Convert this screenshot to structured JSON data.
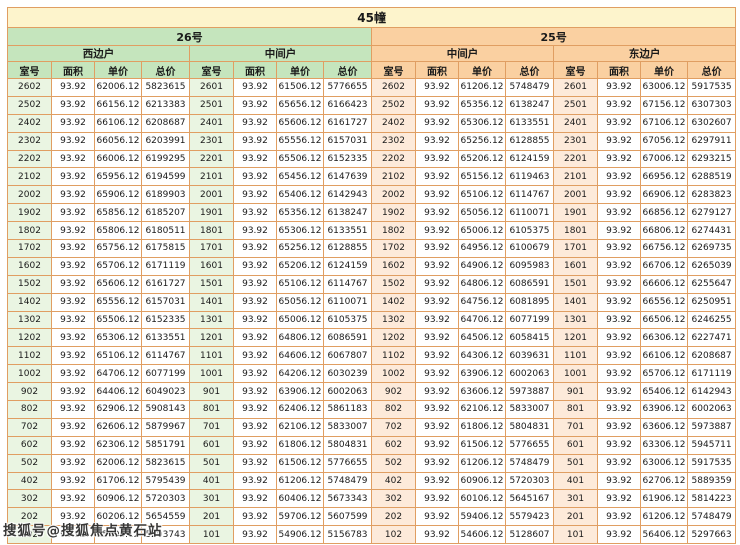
{
  "page": {
    "title": "45幢",
    "watermark": "搜狐号@搜狐焦点黄石站"
  },
  "colors": {
    "title_bg": "#fdf4cc",
    "green_header_bg": "#c5e5bd",
    "green_cell_bg": "#eaf5e2",
    "orange_header_bg": "#fad0a1",
    "orange_cell_bg": "#fdeada",
    "border": "#e09e62"
  },
  "table": {
    "columns": [
      "室号",
      "面积",
      "单价",
      "总价"
    ],
    "sections": [
      {
        "label": "26号",
        "theme": "green",
        "groups": [
          {
            "label": "西边户",
            "rows": [
              [
                "2602",
                "93.92",
                "62006.12",
                "5823615"
              ],
              [
                "2502",
                "93.92",
                "66156.12",
                "6213383"
              ],
              [
                "2402",
                "93.92",
                "66106.12",
                "6208687"
              ],
              [
                "2302",
                "93.92",
                "66056.12",
                "6203991"
              ],
              [
                "2202",
                "93.92",
                "66006.12",
                "6199295"
              ],
              [
                "2102",
                "93.92",
                "65956.12",
                "6194599"
              ],
              [
                "2002",
                "93.92",
                "65906.12",
                "6189903"
              ],
              [
                "1902",
                "93.92",
                "65856.12",
                "6185207"
              ],
              [
                "1802",
                "93.92",
                "65806.12",
                "6180511"
              ],
              [
                "1702",
                "93.92",
                "65756.12",
                "6175815"
              ],
              [
                "1602",
                "93.92",
                "65706.12",
                "6171119"
              ],
              [
                "1502",
                "93.92",
                "65606.12",
                "6161727"
              ],
              [
                "1402",
                "93.92",
                "65556.12",
                "6157031"
              ],
              [
                "1302",
                "93.92",
                "65506.12",
                "6152335"
              ],
              [
                "1202",
                "93.92",
                "65306.12",
                "6133551"
              ],
              [
                "1102",
                "93.92",
                "65106.12",
                "6114767"
              ],
              [
                "1002",
                "93.92",
                "64706.12",
                "6077199"
              ],
              [
                "902",
                "93.92",
                "64406.12",
                "6049023"
              ],
              [
                "802",
                "93.92",
                "62906.12",
                "5908143"
              ],
              [
                "702",
                "93.92",
                "62606.12",
                "5879967"
              ],
              [
                "602",
                "93.92",
                "62306.12",
                "5851791"
              ],
              [
                "502",
                "93.92",
                "62006.12",
                "5823615"
              ],
              [
                "402",
                "93.92",
                "61706.12",
                "5795439"
              ],
              [
                "302",
                "93.92",
                "60906.12",
                "5720303"
              ],
              [
                "202",
                "93.92",
                "60206.12",
                "5654559"
              ],
              [
                "102",
                "93.92",
                "55406.12",
                "5203743"
              ]
            ]
          },
          {
            "label": "中间户",
            "rows": [
              [
                "2601",
                "93.92",
                "61506.12",
                "5776655"
              ],
              [
                "2501",
                "93.92",
                "65656.12",
                "6166423"
              ],
              [
                "2401",
                "93.92",
                "65606.12",
                "6161727"
              ],
              [
                "2301",
                "93.92",
                "65556.12",
                "6157031"
              ],
              [
                "2201",
                "93.92",
                "65506.12",
                "6152335"
              ],
              [
                "2101",
                "93.92",
                "65456.12",
                "6147639"
              ],
              [
                "2001",
                "93.92",
                "65406.12",
                "6142943"
              ],
              [
                "1901",
                "93.92",
                "65356.12",
                "6138247"
              ],
              [
                "1801",
                "93.92",
                "65306.12",
                "6133551"
              ],
              [
                "1701",
                "93.92",
                "65256.12",
                "6128855"
              ],
              [
                "1601",
                "93.92",
                "65206.12",
                "6124159"
              ],
              [
                "1501",
                "93.92",
                "65106.12",
                "6114767"
              ],
              [
                "1401",
                "93.92",
                "65056.12",
                "6110071"
              ],
              [
                "1301",
                "93.92",
                "65006.12",
                "6105375"
              ],
              [
                "1201",
                "93.92",
                "64806.12",
                "6086591"
              ],
              [
                "1101",
                "93.92",
                "64606.12",
                "6067807"
              ],
              [
                "1001",
                "93.92",
                "64206.12",
                "6030239"
              ],
              [
                "901",
                "93.92",
                "63906.12",
                "6002063"
              ],
              [
                "801",
                "93.92",
                "62406.12",
                "5861183"
              ],
              [
                "701",
                "93.92",
                "62106.12",
                "5833007"
              ],
              [
                "601",
                "93.92",
                "61806.12",
                "5804831"
              ],
              [
                "501",
                "93.92",
                "61506.12",
                "5776655"
              ],
              [
                "401",
                "93.92",
                "61206.12",
                "5748479"
              ],
              [
                "301",
                "93.92",
                "60406.12",
                "5673343"
              ],
              [
                "201",
                "93.92",
                "59706.12",
                "5607599"
              ],
              [
                "101",
                "93.92",
                "54906.12",
                "5156783"
              ]
            ]
          }
        ]
      },
      {
        "label": "25号",
        "theme": "orange",
        "groups": [
          {
            "label": "中间户",
            "rows": [
              [
                "2602",
                "93.92",
                "61206.12",
                "5748479"
              ],
              [
                "2502",
                "93.92",
                "65356.12",
                "6138247"
              ],
              [
                "2402",
                "93.92",
                "65306.12",
                "6133551"
              ],
              [
                "2302",
                "93.92",
                "65256.12",
                "6128855"
              ],
              [
                "2202",
                "93.92",
                "65206.12",
                "6124159"
              ],
              [
                "2102",
                "93.92",
                "65156.12",
                "6119463"
              ],
              [
                "2002",
                "93.92",
                "65106.12",
                "6114767"
              ],
              [
                "1902",
                "93.92",
                "65056.12",
                "6110071"
              ],
              [
                "1802",
                "93.92",
                "65006.12",
                "6105375"
              ],
              [
                "1702",
                "93.92",
                "64956.12",
                "6100679"
              ],
              [
                "1602",
                "93.92",
                "64906.12",
                "6095983"
              ],
              [
                "1502",
                "93.92",
                "64806.12",
                "6086591"
              ],
              [
                "1402",
                "93.92",
                "64756.12",
                "6081895"
              ],
              [
                "1302",
                "93.92",
                "64706.12",
                "6077199"
              ],
              [
                "1202",
                "93.92",
                "64506.12",
                "6058415"
              ],
              [
                "1102",
                "93.92",
                "64306.12",
                "6039631"
              ],
              [
                "1002",
                "93.92",
                "63906.12",
                "6002063"
              ],
              [
                "902",
                "93.92",
                "63606.12",
                "5973887"
              ],
              [
                "802",
                "93.92",
                "62106.12",
                "5833007"
              ],
              [
                "702",
                "93.92",
                "61806.12",
                "5804831"
              ],
              [
                "602",
                "93.92",
                "61506.12",
                "5776655"
              ],
              [
                "502",
                "93.92",
                "61206.12",
                "5748479"
              ],
              [
                "402",
                "93.92",
                "60906.12",
                "5720303"
              ],
              [
                "302",
                "93.92",
                "60106.12",
                "5645167"
              ],
              [
                "202",
                "93.92",
                "59406.12",
                "5579423"
              ],
              [
                "102",
                "93.92",
                "54606.12",
                "5128607"
              ]
            ]
          },
          {
            "label": "东边户",
            "rows": [
              [
                "2601",
                "93.92",
                "63006.12",
                "5917535"
              ],
              [
                "2501",
                "93.92",
                "67156.12",
                "6307303"
              ],
              [
                "2401",
                "93.92",
                "67106.12",
                "6302607"
              ],
              [
                "2301",
                "93.92",
                "67056.12",
                "6297911"
              ],
              [
                "2201",
                "93.92",
                "67006.12",
                "6293215"
              ],
              [
                "2101",
                "93.92",
                "66956.12",
                "6288519"
              ],
              [
                "2001",
                "93.92",
                "66906.12",
                "6283823"
              ],
              [
                "1901",
                "93.92",
                "66856.12",
                "6279127"
              ],
              [
                "1801",
                "93.92",
                "66806.12",
                "6274431"
              ],
              [
                "1701",
                "93.92",
                "66756.12",
                "6269735"
              ],
              [
                "1601",
                "93.92",
                "66706.12",
                "6265039"
              ],
              [
                "1501",
                "93.92",
                "66606.12",
                "6255647"
              ],
              [
                "1401",
                "93.92",
                "66556.12",
                "6250951"
              ],
              [
                "1301",
                "93.92",
                "66506.12",
                "6246255"
              ],
              [
                "1201",
                "93.92",
                "66306.12",
                "6227471"
              ],
              [
                "1101",
                "93.92",
                "66106.12",
                "6208687"
              ],
              [
                "1001",
                "93.92",
                "65706.12",
                "6171119"
              ],
              [
                "901",
                "93.92",
                "65406.12",
                "6142943"
              ],
              [
                "801",
                "93.92",
                "63906.12",
                "6002063"
              ],
              [
                "701",
                "93.92",
                "63606.12",
                "5973887"
              ],
              [
                "601",
                "93.92",
                "63306.12",
                "5945711"
              ],
              [
                "501",
                "93.92",
                "63006.12",
                "5917535"
              ],
              [
                "401",
                "93.92",
                "62706.12",
                "5889359"
              ],
              [
                "301",
                "93.92",
                "61906.12",
                "5814223"
              ],
              [
                "201",
                "93.92",
                "61206.12",
                "5748479"
              ],
              [
                "101",
                "93.92",
                "56406.12",
                "5297663"
              ]
            ]
          }
        ]
      }
    ]
  }
}
